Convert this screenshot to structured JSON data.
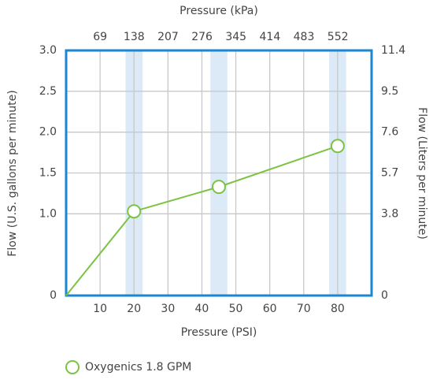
{
  "chart_data": {
    "type": "line",
    "title": "Pressure (kPa)",
    "x_label": "Pressure (PSI)",
    "y_label": "Flow (U.S. gallons per minute)",
    "y2_label": "Flow (Liters per minute)",
    "xlim": [
      0,
      90
    ],
    "xticks": [
      10,
      20,
      30,
      40,
      50,
      60,
      70,
      80
    ],
    "x2lim": [
      0,
      620.5
    ],
    "x2ticks": [
      69,
      138,
      207,
      276,
      345,
      414,
      483,
      552
    ],
    "ylim": [
      0,
      3
    ],
    "yticks": [
      0,
      {
        "value": 1,
        "label": "1.0"
      },
      1.5,
      {
        "value": 2,
        "label": "2.0"
      },
      2.5,
      {
        "value": 3,
        "label": "3.0"
      }
    ],
    "y2lim": [
      0,
      11.4
    ],
    "y2ticks": [
      0,
      3.8,
      5.7,
      7.6,
      9.5,
      11.4
    ],
    "grid": true,
    "bands": [
      [
        17.5,
        22.5
      ],
      [
        42.5,
        47.5
      ],
      [
        77.5,
        82.5
      ]
    ],
    "band_color": "#dce9f7",
    "frame_color": "#1b87d0",
    "legend": "bottom-left",
    "series": [
      {
        "name": "Oxygenics 1.8 GPM",
        "color": "#7dc243",
        "x": [
          0,
          20,
          45,
          80
        ],
        "values": [
          0,
          1.03,
          1.33,
          1.83
        ],
        "markers": [
          false,
          true,
          true,
          true
        ]
      }
    ]
  }
}
